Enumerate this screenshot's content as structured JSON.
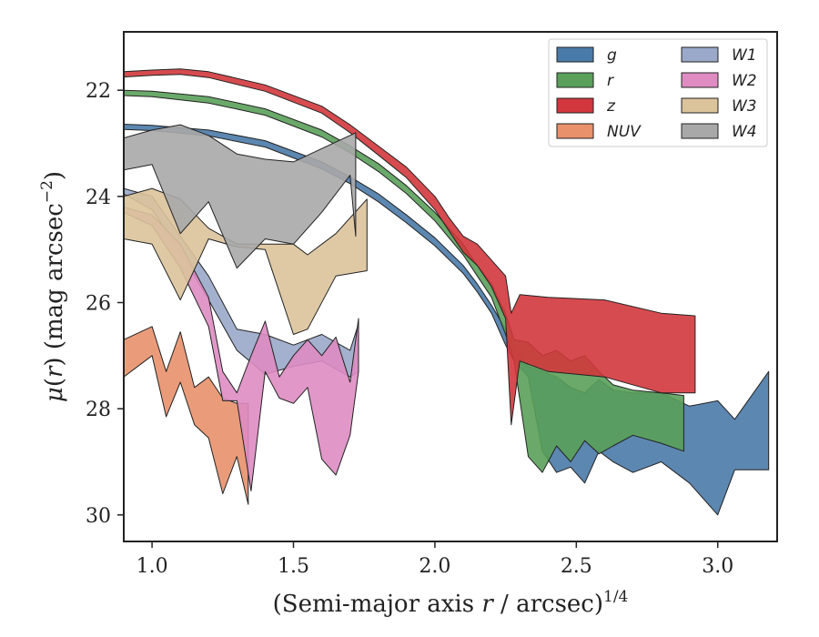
{
  "chart_data": {
    "type": "area",
    "xlabel": "(Semi-major axis r / arcsec)^1/4",
    "ylabel": "μ(r) (mag arcsec^−2)",
    "xlim": [
      0.9,
      3.21
    ],
    "ylim": [
      30.5,
      20.9
    ],
    "y_inverted": true,
    "x_ticks": [
      "1.0",
      "1.5",
      "2.0",
      "2.5",
      "3.0"
    ],
    "x_tick_values": [
      1.0,
      1.5,
      2.0,
      2.5,
      3.0
    ],
    "y_ticks": [
      "22",
      "24",
      "26",
      "28",
      "30"
    ],
    "y_tick_values": [
      22,
      24,
      26,
      28,
      30
    ],
    "legend_position": "top-right",
    "legend_columns": 2,
    "series": [
      {
        "name": "g",
        "color": "#4a7aa9",
        "x": [
          0.9,
          1.0,
          1.2,
          1.4,
          1.6,
          1.7,
          1.8,
          1.9,
          2.0,
          2.1,
          2.15,
          2.2,
          2.25,
          2.28,
          2.33,
          2.38,
          2.43,
          2.48,
          2.53,
          2.58,
          2.63,
          2.7,
          2.8,
          2.9,
          3.0,
          3.06,
          3.18
        ],
        "y_upper": [
          22.64,
          22.66,
          22.75,
          22.95,
          23.35,
          23.63,
          23.95,
          24.35,
          24.78,
          25.3,
          25.65,
          26.05,
          26.5,
          26.85,
          27.2,
          27.3,
          27.4,
          27.6,
          27.7,
          27.45,
          27.65,
          27.7,
          27.7,
          27.95,
          27.85,
          28.2,
          27.3
        ],
        "y_lower": [
          22.74,
          22.76,
          22.86,
          23.07,
          23.48,
          23.76,
          24.1,
          24.5,
          24.93,
          25.45,
          25.8,
          26.2,
          26.8,
          27.1,
          27.4,
          28.8,
          29.2,
          29.1,
          29.4,
          28.8,
          29.0,
          29.2,
          29.0,
          29.4,
          30.0,
          29.15,
          29.15
        ]
      },
      {
        "name": "r",
        "color": "#5aa05a",
        "x": [
          0.9,
          1.0,
          1.2,
          1.4,
          1.6,
          1.7,
          1.8,
          1.9,
          2.0,
          2.1,
          2.15,
          2.2,
          2.25,
          2.28,
          2.33,
          2.38,
          2.43,
          2.48,
          2.53,
          2.58,
          2.63,
          2.7,
          2.8,
          2.88
        ],
        "y_upper": [
          22.0,
          22.02,
          22.12,
          22.35,
          22.75,
          23.05,
          23.38,
          23.8,
          24.3,
          24.9,
          25.3,
          25.65,
          26.2,
          26.7,
          26.75,
          27.0,
          26.9,
          27.1,
          27.0,
          27.3,
          27.55,
          27.65,
          27.7,
          27.75
        ],
        "y_lower": [
          22.1,
          22.12,
          22.24,
          22.47,
          22.88,
          23.18,
          23.53,
          23.95,
          24.46,
          25.1,
          25.5,
          25.9,
          26.6,
          27.1,
          28.9,
          29.2,
          28.7,
          29.0,
          28.6,
          28.85,
          28.7,
          28.5,
          28.65,
          28.8
        ]
      },
      {
        "name": "z",
        "color": "#d1373c",
        "x": [
          0.9,
          1.0,
          1.1,
          1.2,
          1.4,
          1.6,
          1.7,
          1.8,
          1.9,
          2.0,
          2.05,
          2.1,
          2.15,
          2.2,
          2.25,
          2.27,
          2.3,
          2.4,
          2.6,
          2.8,
          2.92
        ],
        "y_upper": [
          21.65,
          21.62,
          21.6,
          21.65,
          21.9,
          22.3,
          22.65,
          23.05,
          23.45,
          24.0,
          24.4,
          24.75,
          24.9,
          25.2,
          25.5,
          26.2,
          25.85,
          25.9,
          25.95,
          26.2,
          26.25
        ],
        "y_lower": [
          21.75,
          21.72,
          21.7,
          21.76,
          22.02,
          22.43,
          22.8,
          23.22,
          23.65,
          24.25,
          24.65,
          25.05,
          25.3,
          25.7,
          26.3,
          28.3,
          27.1,
          27.3,
          27.4,
          27.7,
          27.7
        ]
      },
      {
        "name": "NUV",
        "color": "#e8916b",
        "x": [
          0.9,
          1.0,
          1.05,
          1.1,
          1.15,
          1.2,
          1.25,
          1.3,
          1.34
        ],
        "y_upper": [
          26.7,
          26.45,
          27.3,
          26.55,
          27.6,
          27.4,
          27.8,
          27.9,
          27.9
        ],
        "y_lower": [
          27.4,
          27.0,
          28.15,
          27.5,
          28.3,
          28.55,
          29.6,
          28.9,
          29.8
        ]
      },
      {
        "name": "W1",
        "color": "#9aa8c9",
        "x": [
          0.9,
          1.0,
          1.1,
          1.2,
          1.3,
          1.4,
          1.5,
          1.6,
          1.7,
          1.73
        ],
        "y_upper": [
          23.85,
          24.0,
          24.75,
          25.5,
          26.5,
          26.6,
          26.8,
          26.6,
          26.9,
          26.4
        ],
        "y_lower": [
          23.95,
          24.25,
          25.05,
          25.95,
          26.9,
          27.35,
          27.2,
          27.1,
          27.4,
          27.3
        ]
      },
      {
        "name": "W2",
        "color": "#de8cc2",
        "x": [
          0.9,
          1.0,
          1.1,
          1.2,
          1.25,
          1.3,
          1.35,
          1.4,
          1.45,
          1.5,
          1.55,
          1.6,
          1.65,
          1.7,
          1.73
        ],
        "y_upper": [
          24.2,
          24.35,
          24.9,
          25.9,
          27.3,
          27.7,
          27.0,
          26.35,
          27.4,
          27.0,
          26.7,
          27.0,
          26.65,
          27.5,
          26.3
        ],
        "y_lower": [
          24.3,
          24.55,
          25.35,
          26.45,
          27.85,
          27.85,
          29.55,
          27.3,
          27.8,
          27.9,
          27.6,
          28.95,
          29.25,
          28.5,
          27.3
        ]
      },
      {
        "name": "W3",
        "color": "#dbc39b",
        "x": [
          0.9,
          1.0,
          1.1,
          1.2,
          1.3,
          1.4,
          1.5,
          1.55,
          1.65,
          1.76
        ],
        "y_upper": [
          24.0,
          23.85,
          24.05,
          24.6,
          24.9,
          24.9,
          24.9,
          25.1,
          24.7,
          24.05
        ],
        "y_lower": [
          24.8,
          24.9,
          25.95,
          24.8,
          24.95,
          25.0,
          26.6,
          26.5,
          25.5,
          25.4
        ]
      },
      {
        "name": "W4",
        "color": "#a8a8a8",
        "x": [
          0.9,
          1.0,
          1.1,
          1.2,
          1.3,
          1.4,
          1.5,
          1.6,
          1.7,
          1.72
        ],
        "y_upper": [
          22.9,
          22.75,
          22.65,
          22.85,
          23.2,
          23.3,
          23.35,
          23.1,
          22.85,
          22.8
        ],
        "y_lower": [
          23.5,
          23.4,
          24.7,
          24.1,
          25.35,
          24.8,
          24.9,
          24.3,
          23.6,
          24.75
        ]
      }
    ]
  }
}
